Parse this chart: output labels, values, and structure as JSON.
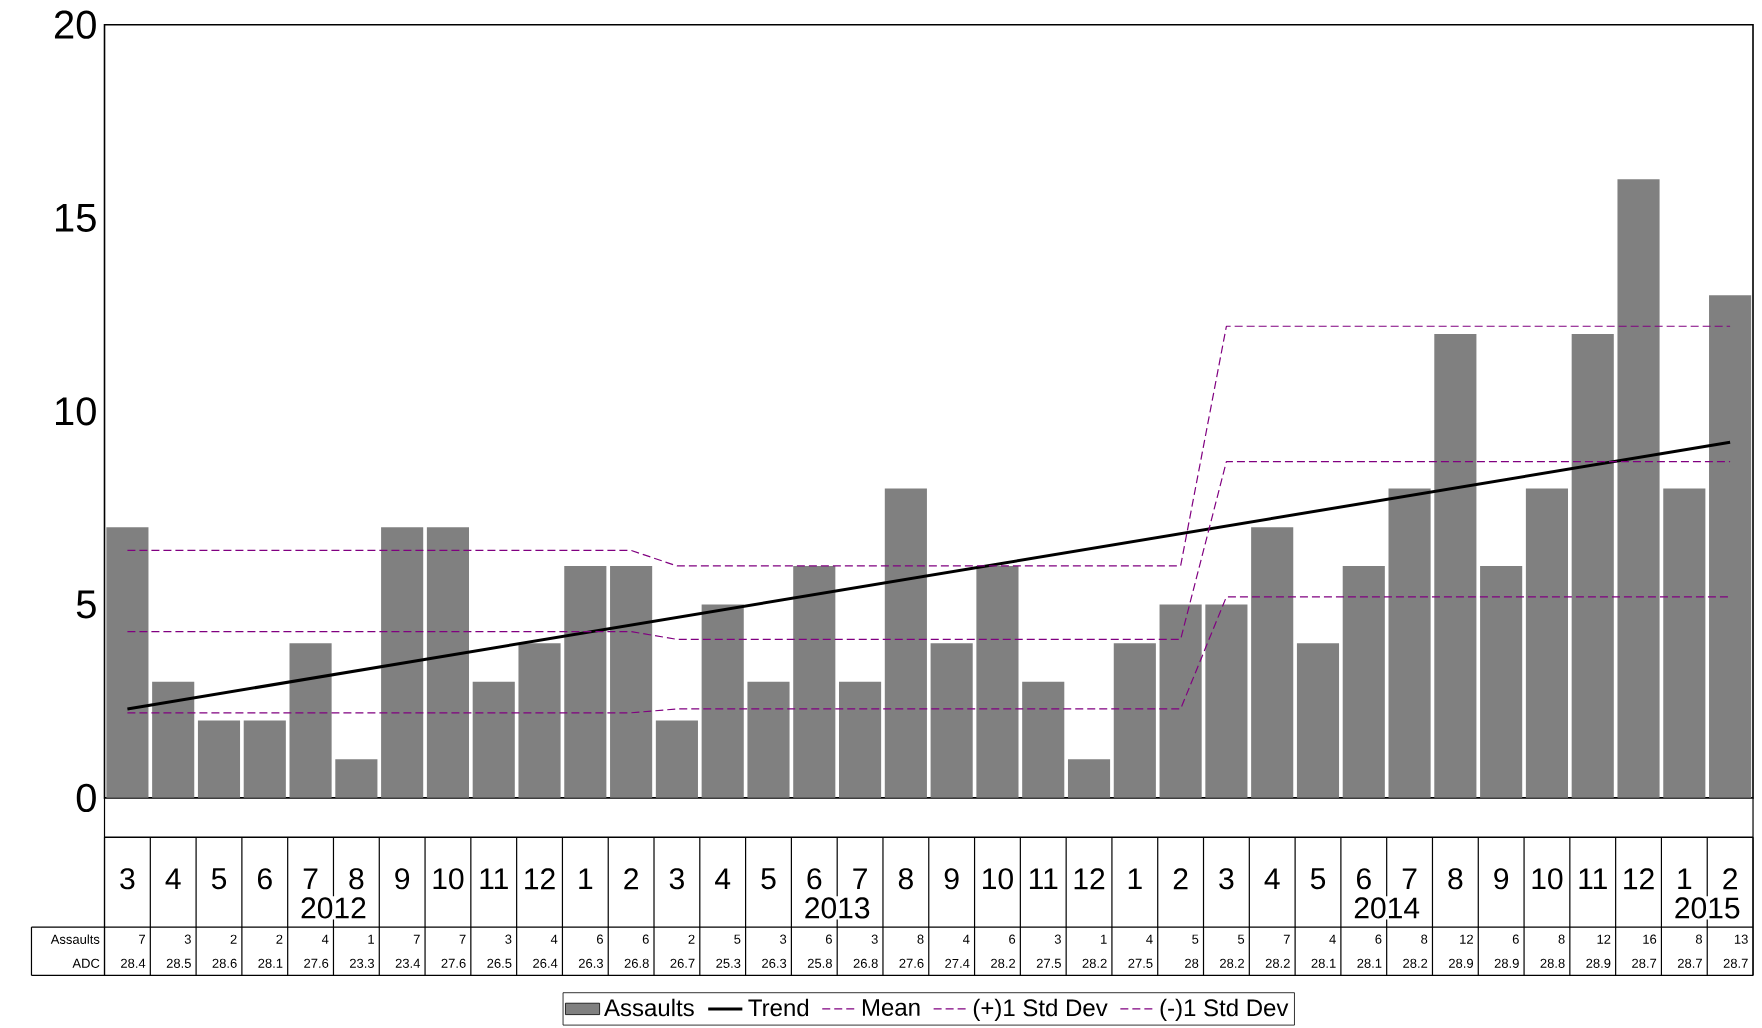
{
  "chart_data": {
    "type": "bar",
    "categories": [
      "3",
      "4",
      "5",
      "6",
      "7",
      "8",
      "9",
      "10",
      "11",
      "12",
      "1",
      "2",
      "3",
      "4",
      "5",
      "6",
      "7",
      "8",
      "9",
      "10",
      "11",
      "12",
      "1",
      "2",
      "3",
      "4",
      "5",
      "6",
      "7",
      "8",
      "9",
      "10",
      "11",
      "12",
      "1",
      "2"
    ],
    "annotations": [
      "2012",
      "2013",
      "2014",
      "2015"
    ],
    "series": [
      {
        "name": "Assaults",
        "color": "#808080",
        "values": [
          7,
          3,
          2,
          2,
          4,
          1,
          7,
          7,
          3,
          4,
          6,
          6,
          2,
          5,
          3,
          6,
          3,
          8,
          4,
          6,
          3,
          1,
          4,
          5,
          5,
          7,
          4,
          6,
          8,
          12,
          6,
          8,
          12,
          16,
          8,
          13
        ],
        "value_labels": [
          "7",
          "3",
          "2",
          "2",
          "4",
          "1",
          "7",
          "7",
          "3",
          "4",
          "6",
          "6",
          "2",
          "5",
          "3",
          "6",
          "3",
          "8",
          "4",
          "6",
          "3",
          "1",
          "4",
          "5",
          "5",
          "7",
          "4",
          "6",
          "8",
          "12",
          "6",
          "8",
          "12",
          "16",
          "8",
          "13"
        ]
      },
      {
        "name": "Trend",
        "type": "line",
        "color": "#000000",
        "line_style": "solid",
        "values": [
          2.3,
          null,
          null,
          null,
          null,
          null,
          null,
          null,
          null,
          null,
          null,
          null,
          null,
          null,
          null,
          null,
          null,
          null,
          null,
          null,
          null,
          null,
          null,
          null,
          null,
          null,
          null,
          null,
          null,
          null,
          null,
          null,
          null,
          null,
          null,
          9.2
        ]
      },
      {
        "name": "Mean",
        "type": "line",
        "color": "#800080",
        "line_style": "dashed",
        "values": [
          4.3,
          4.3,
          4.3,
          4.3,
          4.3,
          4.3,
          4.3,
          4.3,
          4.3,
          4.3,
          4.3,
          4.3,
          4.1,
          4.1,
          4.1,
          4.1,
          4.1,
          4.1,
          4.1,
          4.1,
          4.1,
          4.1,
          4.1,
          4.1,
          8.7,
          8.7,
          8.7,
          8.7,
          8.7,
          8.7,
          8.7,
          8.7,
          8.7,
          8.7,
          8.7,
          8.7
        ]
      },
      {
        "name": "(+)1 Std Dev",
        "type": "line",
        "color": "#800080",
        "line_style": "dashed",
        "values": [
          6.4,
          6.4,
          6.4,
          6.4,
          6.4,
          6.4,
          6.4,
          6.4,
          6.4,
          6.4,
          6.4,
          6.4,
          6.0,
          6.0,
          6.0,
          6.0,
          6.0,
          6.0,
          6.0,
          6.0,
          6.0,
          6.0,
          6.0,
          6.0,
          12.2,
          12.2,
          12.2,
          12.2,
          12.2,
          12.2,
          12.2,
          12.2,
          12.2,
          12.2,
          12.2,
          12.2
        ]
      },
      {
        "name": "(-)1 Std Dev",
        "type": "line",
        "color": "#800080",
        "line_style": "dashed",
        "values": [
          2.2,
          2.2,
          2.2,
          2.2,
          2.2,
          2.2,
          2.2,
          2.2,
          2.2,
          2.2,
          2.2,
          2.2,
          2.3,
          2.3,
          2.3,
          2.3,
          2.3,
          2.3,
          2.3,
          2.3,
          2.3,
          2.3,
          2.3,
          2.3,
          5.2,
          5.2,
          5.2,
          5.2,
          5.2,
          5.2,
          5.2,
          5.2,
          5.2,
          5.2,
          5.2,
          5.2
        ]
      },
      {
        "name": "ADC",
        "type": "other",
        "values": [
          null,
          null,
          null,
          null,
          null,
          null,
          null,
          null,
          null,
          null,
          null,
          null,
          null,
          null,
          null,
          null,
          null,
          null,
          null,
          null,
          null,
          null,
          null,
          null,
          null,
          null,
          null,
          null,
          null,
          null,
          null,
          null,
          null,
          null,
          null,
          null
        ],
        "value_labels": [
          "28.4",
          "28.5",
          "28.6",
          "28.1",
          "27.6",
          "23.3",
          "23.4",
          "27.6",
          "26.5",
          "26.4",
          "26.3",
          "26.8",
          "26.7",
          "25.3",
          "26.3",
          "25.8",
          "26.8",
          "27.6",
          "27.4",
          "28.2",
          "27.5",
          "28.2",
          "27.5",
          "28",
          "28.2",
          "28.2",
          "28.1",
          "28.1",
          "28.2",
          "28.9",
          "28.9",
          "28.8",
          "28.9",
          "28.7",
          "28.7",
          "28.7"
        ]
      }
    ],
    "ylim": [
      0,
      20
    ],
    "yticks": [
      0,
      5,
      10,
      15,
      20
    ],
    "legend": "bottom"
  }
}
